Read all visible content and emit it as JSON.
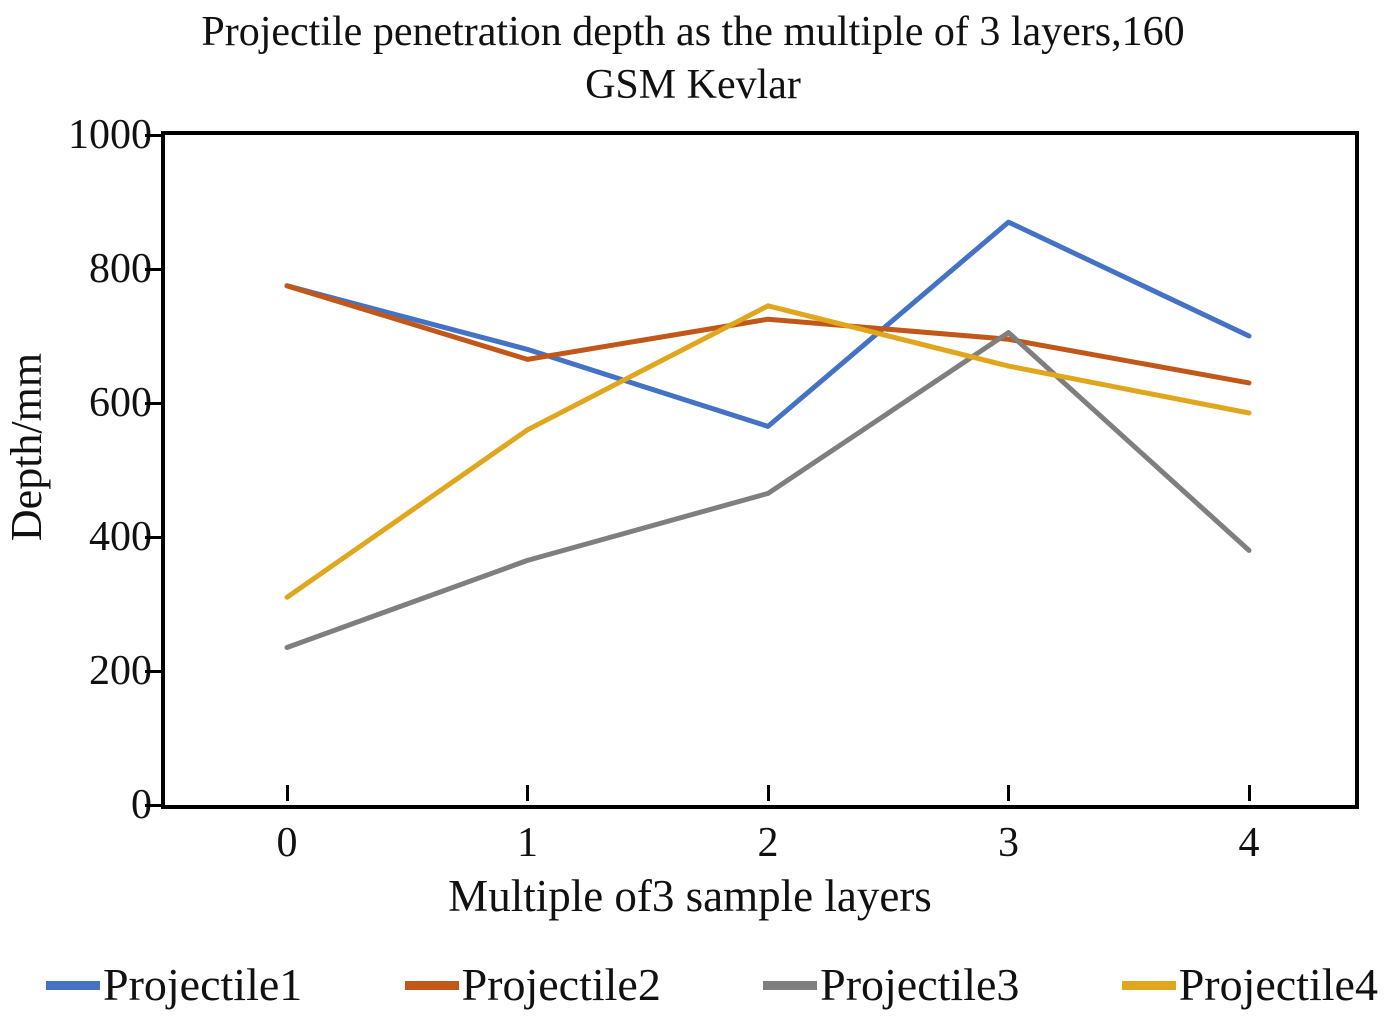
{
  "title": {
    "line1": "Projectile penetration depth as the multiple of 3 layers,160",
    "line2": "GSM Kevlar"
  },
  "chart_data": {
    "type": "line",
    "title": "Projectile penetration depth as the multiple of 3 layers,160 GSM Kevlar",
    "xlabel": "Multiple of3 sample layers",
    "ylabel": "Depth/mm",
    "x": [
      0,
      1,
      2,
      3,
      4
    ],
    "xticks": [
      "0",
      "1",
      "2",
      "3",
      "4"
    ],
    "yticks": [
      {
        "value": 1000,
        "label": "1000"
      },
      {
        "value": 800,
        "label": "800"
      },
      {
        "value": 600,
        "label": "600"
      },
      {
        "value": 400,
        "label": "400"
      },
      {
        "value": 200,
        "label": "200"
      },
      {
        "value": 0,
        "label": "0"
      }
    ],
    "ylim": [
      0,
      1000
    ],
    "xlim": [
      -0.5,
      4.45
    ],
    "grid": false,
    "legend_position": "bottom",
    "axis_color": "#000000",
    "series": [
      {
        "name": "Projectile1",
        "color": "#4472C4",
        "values": [
          775,
          680,
          565,
          870,
          700
        ]
      },
      {
        "name": "Projectile2",
        "color": "#C2571A",
        "values": [
          775,
          665,
          725,
          695,
          630
        ]
      },
      {
        "name": "Projectile3",
        "color": "#7F7F7F",
        "values": [
          235,
          365,
          465,
          705,
          380
        ]
      },
      {
        "name": "Projectile4",
        "color": "#E0A71E",
        "values": [
          310,
          560,
          745,
          655,
          585
        ]
      }
    ]
  }
}
